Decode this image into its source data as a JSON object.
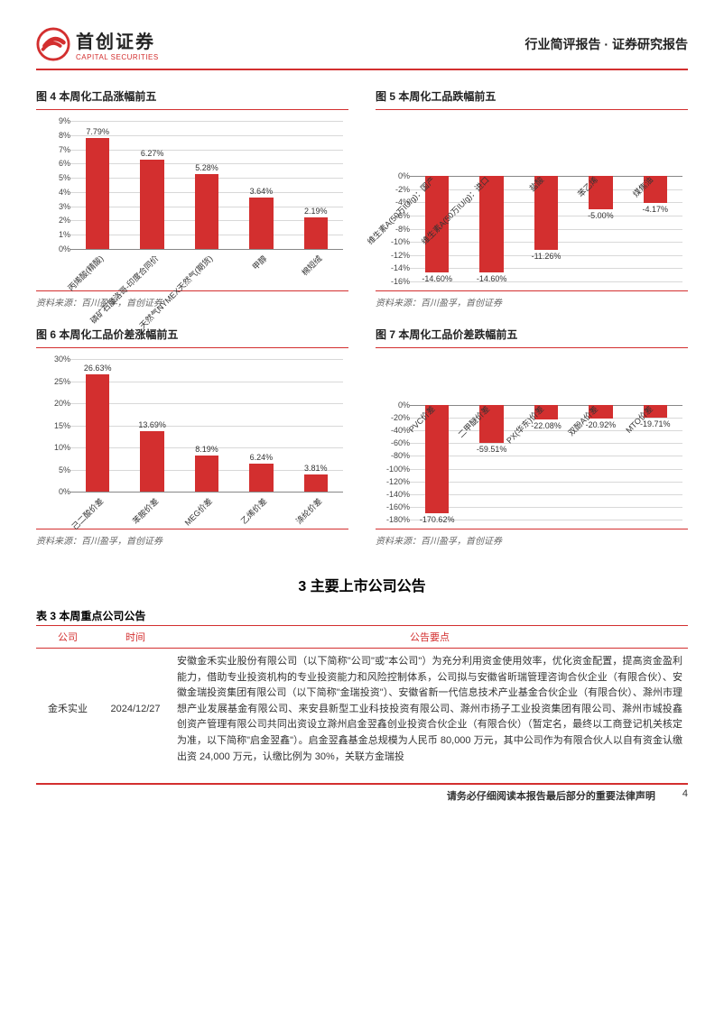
{
  "header": {
    "logo_main": "首创证券",
    "logo_sub": "CAPITAL SECURITIES",
    "right": "行业简评报告 · 证券研究报告"
  },
  "colors": {
    "brand_red": "#d32f2f",
    "bar_fill": "#d32f2f",
    "grid": "#d8d8d8",
    "text": "#333333"
  },
  "charts": [
    {
      "id": "chart4",
      "title": "图 4 本周化工品涨幅前五",
      "type": "bar",
      "orientation": "positive",
      "y_min": 0,
      "y_max": 9,
      "y_step": 1,
      "y_suffix": "%",
      "categories": [
        "丙烯酸(精酸)",
        "磷矿石摩洛哥-印度合同价",
        "天然气NYMEX天然气(期货)",
        "甲醇",
        "棉短绒"
      ],
      "values": [
        7.79,
        6.27,
        5.28,
        3.64,
        2.19
      ],
      "value_labels": [
        "7.79%",
        "6.27%",
        "5.28%",
        "3.64%",
        "2.19%"
      ],
      "x_label_rotation": -45,
      "area_height": 150,
      "x_label_height": 50,
      "x_label_position": "bottom",
      "source": "资料来源：百川盈孚，首创证券"
    },
    {
      "id": "chart5",
      "title": "图 5 本周化工品跌幅前五",
      "type": "bar",
      "orientation": "negative",
      "y_min": -16,
      "y_max": 0,
      "y_step": -2,
      "y_suffix": "%",
      "categories": [
        "维生素A(50万IU/g)：国产",
        "维生素A(50万IU/g)：进口",
        "盐酸",
        "苯乙烯",
        "煤焦油"
      ],
      "values": [
        -14.6,
        -14.6,
        -11.26,
        -5.0,
        -4.17
      ],
      "value_labels": [
        "-14.60%",
        "-14.60%",
        "-11.26%",
        "-5.00%",
        "-4.17%"
      ],
      "x_label_rotation": -45,
      "area_height": 125,
      "x_label_height": 70,
      "x_label_position": "top",
      "source": "资料来源：百川盈孚，首创证券"
    },
    {
      "id": "chart6",
      "title": "图 6 本周化工品价差涨幅前五",
      "type": "bar",
      "orientation": "positive",
      "y_min": 0,
      "y_max": 30,
      "y_step": 5,
      "y_suffix": "%",
      "categories": [
        "己二酸价差",
        "苯胺价差",
        "MEG价差",
        "乙烯价差",
        "涤纶价差"
      ],
      "values": [
        26.63,
        13.69,
        8.19,
        6.24,
        3.81
      ],
      "value_labels": [
        "26.63%",
        "13.69%",
        "8.19%",
        "6.24%",
        "3.81%"
      ],
      "x_label_rotation": -45,
      "area_height": 155,
      "x_label_height": 45,
      "x_label_position": "bottom",
      "source": "资料来源：百川盈孚，首创证券"
    },
    {
      "id": "chart7",
      "title": "图 7 本周化工品价差跌幅前五",
      "type": "bar",
      "orientation": "negative",
      "y_min": -180,
      "y_max": 0,
      "y_step": -20,
      "y_suffix": "%",
      "categories": [
        "PVC价差",
        "二甲醚价差",
        "PX(华东)价差",
        "双酚A价差",
        "MTO价差"
      ],
      "values": [
        -170.62,
        -59.51,
        -22.08,
        -20.92,
        -19.71
      ],
      "value_labels": [
        "-170.62%",
        "-59.51%",
        "-22.08%",
        "-20.92%",
        "-19.71%"
      ],
      "x_label_rotation": -45,
      "area_height": 135,
      "x_label_height": 60,
      "x_label_position": "top",
      "source": "资料来源：百川盈孚，首创证券"
    }
  ],
  "section_heading": "3 主要上市公司公告",
  "table": {
    "title": "表 3 本周重点公司公告",
    "columns": [
      "公司",
      "时间",
      "公告要点"
    ],
    "rows": [
      {
        "company": "金禾实业",
        "date": "2024/12/27",
        "text": "安徽金禾实业股份有限公司（以下简称\"公司\"或\"本公司\"）为充分利用资金使用效率，优化资金配置，提高资金盈利能力，借助专业投资机构的专业投资能力和风险控制体系，公司拟与安徽省昕瑞管理咨询合伙企业（有限合伙）、安徽金瑞投资集团有限公司（以下简称\"金瑞投资\"）、安徽省新一代信息技术产业基金合伙企业（有限合伙）、滁州市理想产业发展基金有限公司、来安县新型工业科技投资有限公司、滁州市扬子工业投资集团有限公司、滁州市城投鑫创资产管理有限公司共同出资设立滁州启金翌鑫创业投资合伙企业（有限合伙）（暂定名，最终以工商登记机关核定为准，以下简称\"启金翌鑫\"）。启金翌鑫基金总规模为人民币 80,000 万元，其中公司作为有限合伙人以自有资金认缴出资 24,000 万元，认缴比例为 30%，关联方金瑞投"
      }
    ]
  },
  "footer": {
    "disclaimer": "请务必仔细阅读本报告最后部分的重要法律声明",
    "page": "4"
  }
}
